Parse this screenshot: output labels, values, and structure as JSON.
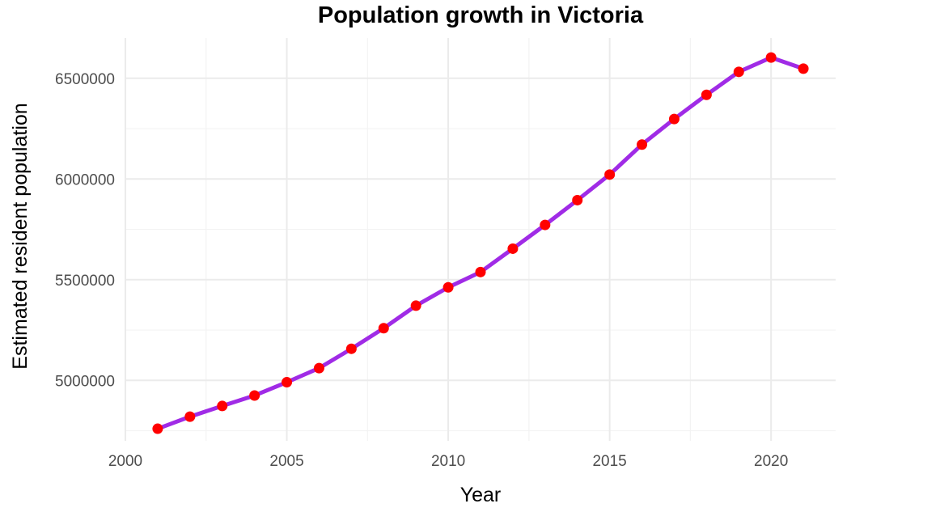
{
  "chart_data": {
    "type": "line",
    "title": "Population growth in Victoria",
    "xlabel": "Year",
    "ylabel": "Estimated resident population",
    "x": [
      2001,
      2002,
      2003,
      2004,
      2005,
      2006,
      2007,
      2008,
      2009,
      2010,
      2011,
      2012,
      2013,
      2014,
      2015,
      2016,
      2017,
      2018,
      2019,
      2020,
      2021
    ],
    "series": [
      {
        "values": [
          4760000,
          4820000,
          4873000,
          4925000,
          4991000,
          5061000,
          5157000,
          5259000,
          5371000,
          5462000,
          5538000,
          5654000,
          5772000,
          5895000,
          6022000,
          6171000,
          6298000,
          6418000,
          6532000,
          6603000,
          6548000
        ],
        "line_color": "#a02be6",
        "point_color": "#ff0000"
      }
    ],
    "xlim": [
      2000,
      2022
    ],
    "ylim": [
      4700000,
      6700000
    ],
    "x_ticks": [
      2000,
      2005,
      2010,
      2015,
      2020
    ],
    "y_ticks": [
      5000000,
      5500000,
      6000000,
      6500000
    ],
    "grid": true,
    "legend": "none"
  }
}
